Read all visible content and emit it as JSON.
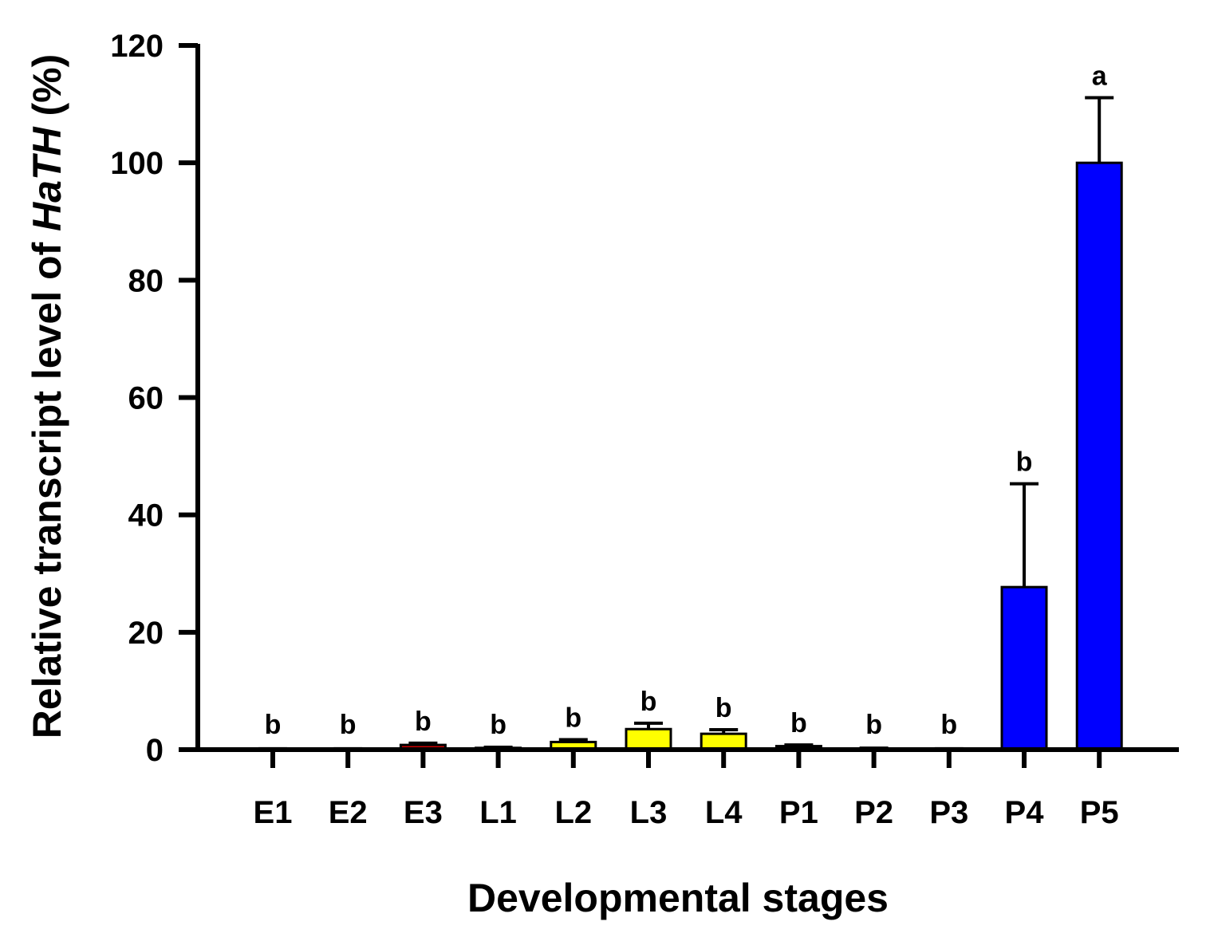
{
  "chart_data": {
    "type": "bar",
    "xlabel": "Developmental stages",
    "ylabel": {
      "prefix": "Relative transcript level of ",
      "italic": "HaTH",
      "suffix": " (%)"
    },
    "ylim": [
      0,
      120
    ],
    "yticks": [
      0,
      20,
      40,
      60,
      80,
      100,
      120
    ],
    "grid": false,
    "legend": "none",
    "categories": [
      "E1",
      "E2",
      "E3",
      "L1",
      "L2",
      "L3",
      "L4",
      "P1",
      "P2",
      "P3",
      "P4",
      "P5"
    ],
    "values": [
      0.1,
      0.1,
      0.8,
      0.3,
      1.3,
      3.5,
      2.7,
      0.6,
      0.2,
      0.1,
      27.7,
      100
    ],
    "errors": [
      0.05,
      0.05,
      0.3,
      0.1,
      0.4,
      1.0,
      0.7,
      0.2,
      0.05,
      0.05,
      17.6,
      11.1
    ],
    "significance": [
      "b",
      "b",
      "b",
      "b",
      "b",
      "b",
      "b",
      "b",
      "b",
      "b",
      "b",
      "a"
    ],
    "colors": [
      "#ffffff",
      "#ffffff",
      "#d40000",
      "#ffffff",
      "#ffff00",
      "#ffff00",
      "#ffff00",
      "#008000",
      "#ffffff",
      "#ffffff",
      "#0000ff",
      "#0000ff"
    ]
  }
}
